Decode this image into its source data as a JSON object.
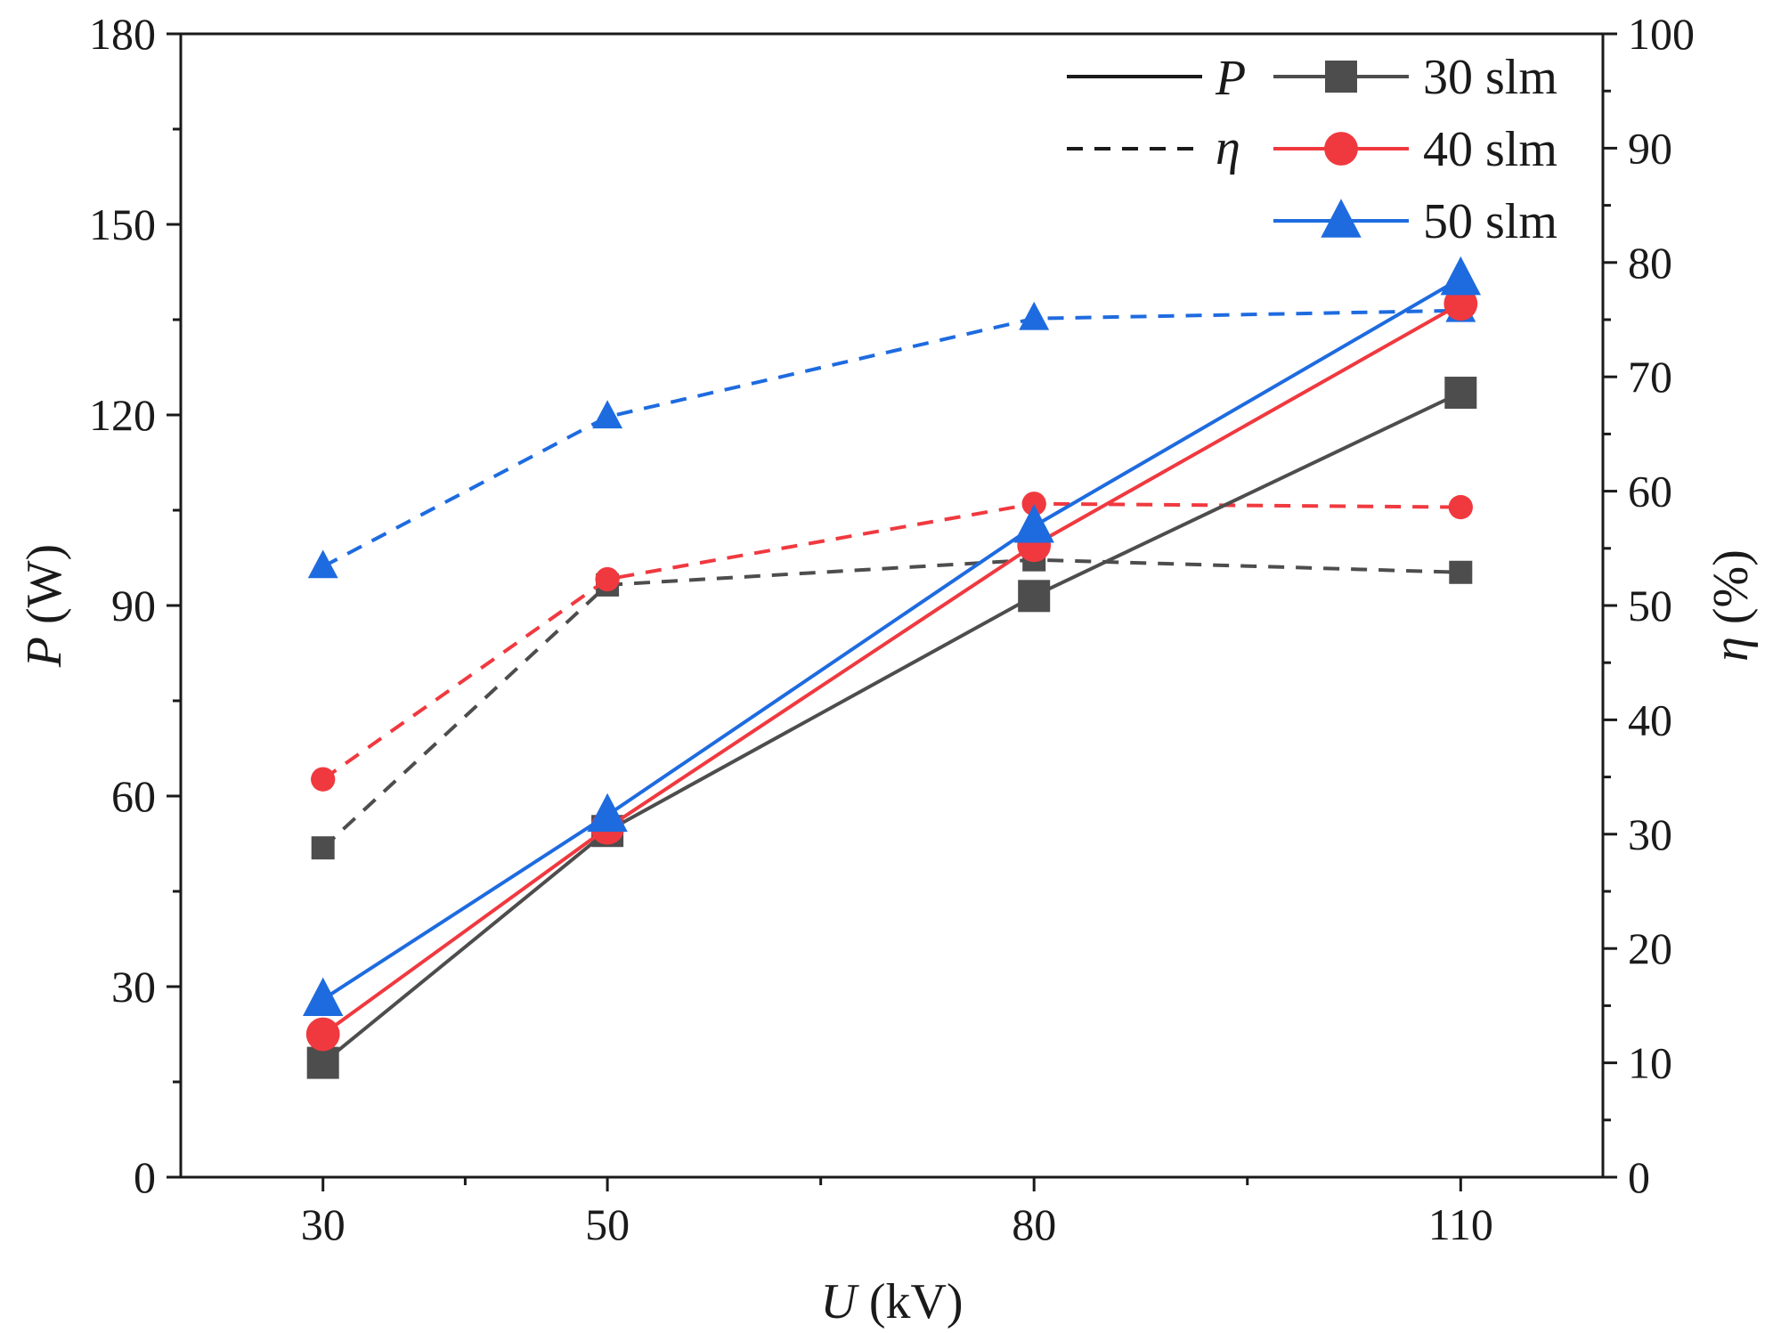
{
  "chart_data": {
    "type": "line",
    "x": [
      30,
      50,
      80,
      110
    ],
    "xlabel": {
      "var": "U",
      "unit": " (kV)"
    },
    "ylabel_left": {
      "var": "P",
      "unit": " (W)"
    },
    "ylabel_right": {
      "var": "η",
      "unit": " (%)"
    },
    "xlim": [
      20,
      120
    ],
    "ylim_left": [
      0,
      180
    ],
    "ylim_right": [
      0,
      100
    ],
    "xticks": [
      30,
      50,
      80,
      110
    ],
    "xticks_minor": [
      40,
      65,
      95
    ],
    "yticks_left": [
      0,
      30,
      60,
      90,
      120,
      150,
      180
    ],
    "yticks_right": [
      0,
      10,
      20,
      30,
      40,
      50,
      60,
      70,
      80,
      90,
      100
    ],
    "series": [
      {
        "name": "30 slm",
        "color": "#4d4d4d",
        "marker": "square",
        "P": [
          18,
          54.5,
          91.5,
          123.5
        ],
        "eta": [
          28.8,
          51.8,
          54.0,
          52.9
        ]
      },
      {
        "name": "40 slm",
        "color": "#f0393f",
        "marker": "circle",
        "P": [
          22.5,
          55,
          99.5,
          137.5
        ],
        "eta": [
          34.8,
          52.3,
          58.9,
          58.6
        ]
      },
      {
        "name": "50 slm",
        "color": "#1e6be0",
        "marker": "triangle",
        "P": [
          28,
          57,
          102.5,
          141.5
        ],
        "eta": [
          53.4,
          66.5,
          75.1,
          75.8
        ]
      }
    ],
    "legend": {
      "style_entries": [
        {
          "label": "P",
          "linestyle": "solid"
        },
        {
          "label": "η",
          "linestyle": "dashed"
        }
      ],
      "placement": "top-right"
    }
  }
}
